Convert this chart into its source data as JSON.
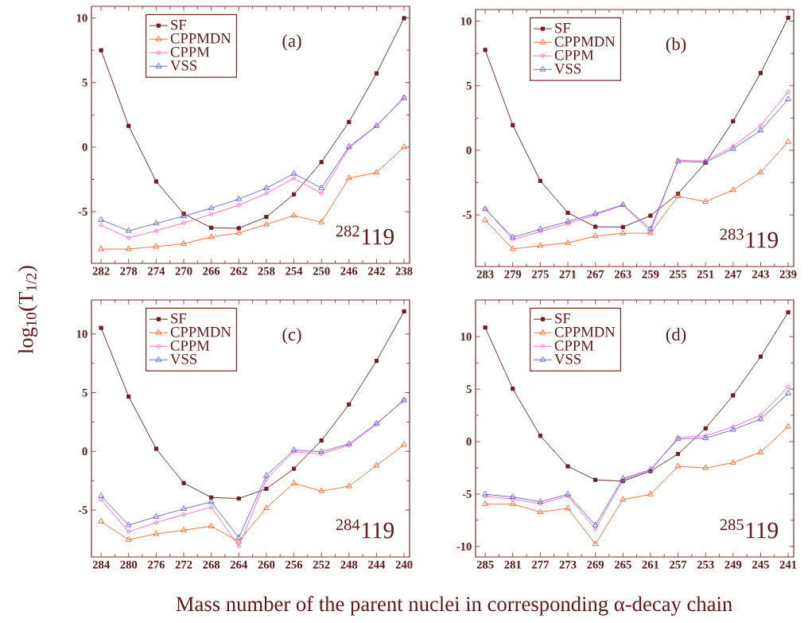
{
  "chart_data": [
    {
      "type": "line",
      "categories": [
        "282",
        "278",
        "274",
        "270",
        "266",
        "262",
        "258",
        "254",
        "250",
        "246",
        "242",
        "238"
      ],
      "ylim": [
        -9,
        10.9
      ],
      "yticks": [
        -5,
        0,
        5,
        10
      ],
      "legend": "top left",
      "ylabel": "log$_{10}$(T$_{1/2}$)",
      "annotations": [
        "(a)",
        "$^{282}$119"
      ],
      "series": [
        {
          "name": "SF",
          "color": "#6b1f1f",
          "marker": "square",
          "values": [
            7.5,
            1.65,
            -2.66,
            -5.16,
            -6.24,
            -6.28,
            -5.41,
            -3.66,
            -1.16,
            1.95,
            5.71,
            9.98
          ]
        },
        {
          "name": "CPPMDN",
          "color": "#ff6633",
          "marker": "triangle",
          "values": [
            -7.9,
            -7.89,
            -7.7,
            -7.48,
            -6.95,
            -6.65,
            -5.98,
            -5.3,
            -5.81,
            -2.4,
            -1.97,
            0.0
          ]
        },
        {
          "name": "CPPM",
          "color": "#ff66cc",
          "marker": "circle",
          "values": [
            -6.04,
            -7.03,
            -6.48,
            -5.87,
            -5.2,
            -4.49,
            -3.58,
            -2.42,
            -3.58,
            -0.08,
            1.65,
            3.9
          ]
        },
        {
          "name": "VSS",
          "color": "#6666cc",
          "marker": "triangle",
          "values": [
            -5.63,
            -6.48,
            -5.91,
            -5.35,
            -4.72,
            -4.02,
            -3.17,
            -2.05,
            -3.17,
            0.04,
            1.65,
            3.8
          ]
        }
      ]
    },
    {
      "type": "line",
      "categories": [
        "283",
        "279",
        "275",
        "271",
        "267",
        "263",
        "259",
        "255",
        "251",
        "247",
        "243",
        "239"
      ],
      "ylim": [
        -9,
        10.9
      ],
      "yticks": [
        -5,
        0,
        5,
        10
      ],
      "legend": "top left",
      "annotations": [
        "(b)",
        "$^{283}$119"
      ],
      "series": [
        {
          "name": "SF",
          "color": "#6b1f1f",
          "marker": "square",
          "values": [
            7.77,
            1.95,
            -2.36,
            -4.84,
            -5.92,
            -5.94,
            -5.06,
            -3.36,
            -0.96,
            2.25,
            5.98,
            10.27
          ]
        },
        {
          "name": "CPPMDN",
          "color": "#ff6633",
          "marker": "triangle",
          "values": [
            -5.41,
            -7.64,
            -7.38,
            -7.17,
            -6.64,
            -6.43,
            -6.41,
            -3.55,
            -3.98,
            -3.07,
            -1.7,
            0.66
          ]
        },
        {
          "name": "CPPM",
          "color": "#ff66cc",
          "marker": "circle",
          "values": [
            -4.49,
            -6.91,
            -6.29,
            -5.68,
            -5.0,
            -4.24,
            -6.29,
            -0.76,
            -0.82,
            0.31,
            1.91,
            4.53
          ]
        },
        {
          "name": "VSS",
          "color": "#6666cc",
          "marker": "triangle",
          "values": [
            -4.55,
            -6.74,
            -6.11,
            -5.51,
            -4.9,
            -4.22,
            -6.09,
            -0.86,
            -0.92,
            0.12,
            1.54,
            3.95
          ]
        }
      ]
    },
    {
      "type": "line",
      "categories": [
        "284",
        "280",
        "276",
        "272",
        "268",
        "264",
        "260",
        "256",
        "252",
        "248",
        "244",
        "240"
      ],
      "ylim": [
        -9,
        12.9
      ],
      "yticks": [
        -5,
        0,
        5,
        10
      ],
      "legend": "top left",
      "xlabel": "Mass number of the parent nuclei in corresponding α-decay chain",
      "annotations": [
        "(c)",
        "$^{284}$119"
      ],
      "series": [
        {
          "name": "SF",
          "color": "#6b1f1f",
          "marker": "square",
          "values": [
            10.52,
            4.67,
            0.22,
            -2.7,
            -3.93,
            -4.02,
            -3.19,
            -1.48,
            0.92,
            4.0,
            7.71,
            11.93
          ]
        },
        {
          "name": "CPPMDN",
          "color": "#ff6633",
          "marker": "triangle",
          "values": [
            -5.98,
            -7.53,
            -7.03,
            -6.72,
            -6.38,
            -7.69,
            -4.83,
            -2.72,
            -3.39,
            -2.97,
            -1.21,
            0.56
          ]
        },
        {
          "name": "CPPM",
          "color": "#ff66cc",
          "marker": "circle",
          "values": [
            -4.11,
            -6.85,
            -6.07,
            -5.39,
            -4.76,
            -8.09,
            -2.38,
            -0.04,
            -0.22,
            0.52,
            2.31,
            4.45
          ]
        },
        {
          "name": "VSS",
          "color": "#6666cc",
          "marker": "triangle",
          "values": [
            -3.8,
            -6.29,
            -5.57,
            -4.9,
            -4.31,
            -7.35,
            -2.07,
            0.11,
            -0.04,
            0.63,
            2.38,
            4.34
          ]
        }
      ]
    },
    {
      "type": "line",
      "categories": [
        "285",
        "281",
        "277",
        "273",
        "269",
        "265",
        "261",
        "257",
        "253",
        "249",
        "245",
        "241"
      ],
      "ylim": [
        -11,
        13.5
      ],
      "yticks": [
        -10,
        -5,
        0,
        5,
        10
      ],
      "legend": "top left",
      "annotations": [
        "(d)",
        "$^{285}$119"
      ],
      "series": [
        {
          "name": "SF",
          "color": "#6b1f1f",
          "marker": "square",
          "values": [
            10.87,
            5.03,
            0.55,
            -2.36,
            -3.65,
            -3.77,
            -2.82,
            -1.18,
            1.26,
            4.4,
            8.1,
            12.33
          ]
        },
        {
          "name": "CPPMDN",
          "color": "#ff6633",
          "marker": "triangle",
          "values": [
            -5.96,
            -5.96,
            -6.72,
            -6.36,
            -9.76,
            -5.53,
            -5.03,
            -2.36,
            -2.52,
            -2.01,
            -1.01,
            1.43
          ]
        },
        {
          "name": "CPPM",
          "color": "#ff66cc",
          "marker": "circle",
          "values": [
            -5.21,
            -5.48,
            -5.94,
            -5.18,
            -8.35,
            -3.65,
            -2.77,
            0.4,
            0.55,
            1.41,
            2.52,
            5.23
          ]
        },
        {
          "name": "VSS",
          "color": "#6666cc",
          "marker": "triangle",
          "values": [
            -5.03,
            -5.28,
            -5.74,
            -5.03,
            -7.97,
            -3.52,
            -2.67,
            0.25,
            0.33,
            1.13,
            2.14,
            4.6
          ]
        }
      ]
    }
  ]
}
